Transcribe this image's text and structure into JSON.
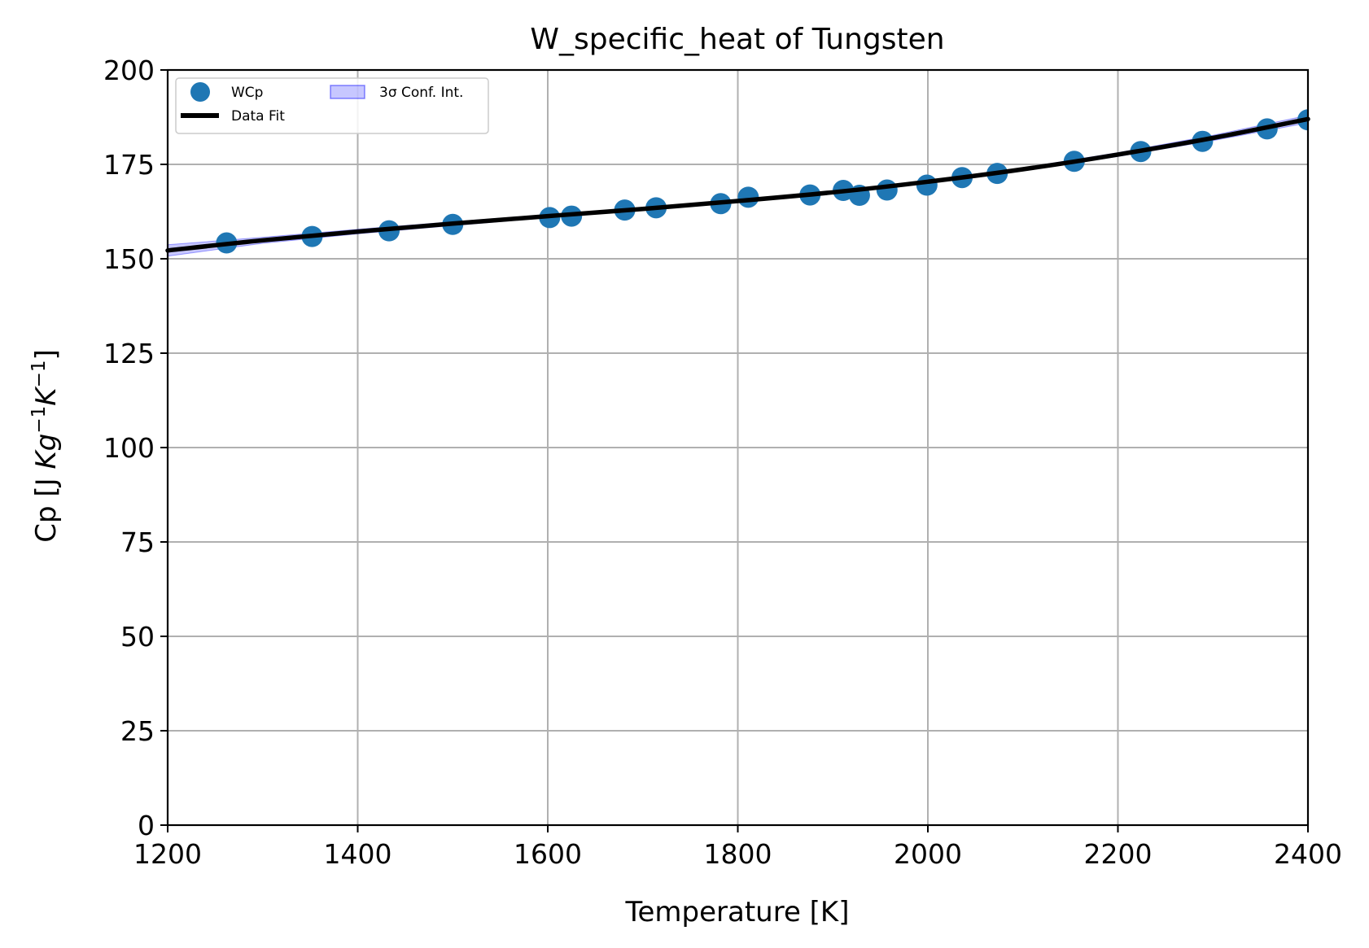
{
  "chart_data": {
    "type": "scatter",
    "title": "W_specific_heat of Tungsten",
    "xlabel": "Temperature [K]",
    "ylabel_prefix": "Cp [J ",
    "ylabel_math": "Kg",
    "ylabel_exp1": "−1",
    "ylabel_k": "K",
    "ylabel_exp2": "−1",
    "ylabel_suffix": "]",
    "xlim": [
      1200,
      2400
    ],
    "ylim": [
      0,
      200
    ],
    "xticks": [
      "1200",
      "1400",
      "1600",
      "1800",
      "2000",
      "2200",
      "2400"
    ],
    "yticks": [
      "0",
      "25",
      "50",
      "75",
      "100",
      "125",
      "150",
      "175",
      "200"
    ],
    "grid": true,
    "legend_position": "top-left",
    "legend": {
      "scatter_label": "WCp",
      "fit_label": "Data Fit",
      "band_label": "3σ Conf. Int."
    },
    "colors": {
      "points": "#1f77b4",
      "fit": "#000000",
      "band": "#0000ff",
      "grid": "#b0b0b0"
    },
    "series": [
      {
        "name": "WCp",
        "kind": "scatter",
        "x": [
          1262,
          1352,
          1433,
          1500,
          1602,
          1625,
          1681,
          1714,
          1782,
          1811,
          1876,
          1911,
          1928,
          1957,
          1999,
          2036,
          2073,
          2154,
          2224,
          2289,
          2357,
          2400
        ],
        "y": [
          154.2,
          155.9,
          157.4,
          159.1,
          160.9,
          161.3,
          162.9,
          163.5,
          164.6,
          166.3,
          166.9,
          168.1,
          166.8,
          168.2,
          169.5,
          171.5,
          172.6,
          175.8,
          178.4,
          181.1,
          184.4,
          186.8
        ]
      },
      {
        "name": "Data Fit",
        "kind": "line",
        "x": [
          1200,
          1300,
          1400,
          1500,
          1600,
          1700,
          1800,
          1900,
          2000,
          2100,
          2200,
          2300,
          2400
        ],
        "y": [
          152.2,
          154.9,
          157.2,
          159.3,
          161.3,
          163.2,
          165.3,
          167.6,
          170.4,
          173.7,
          177.6,
          182.0,
          187.0
        ]
      }
    ],
    "band": {
      "name": "3σ Conf. Int.",
      "x": [
        1200,
        1300,
        1400,
        1500,
        1600,
        1700,
        1800,
        1900,
        2000,
        2100,
        2200,
        2300,
        2400
      ],
      "lower": [
        150.7,
        154.1,
        156.6,
        158.8,
        160.9,
        162.9,
        165.0,
        167.3,
        170.1,
        173.3,
        177.1,
        181.3,
        186.0
      ],
      "upper": [
        153.7,
        155.7,
        157.8,
        159.8,
        161.7,
        163.5,
        165.6,
        167.9,
        170.7,
        174.1,
        178.1,
        182.7,
        188.0
      ]
    }
  }
}
